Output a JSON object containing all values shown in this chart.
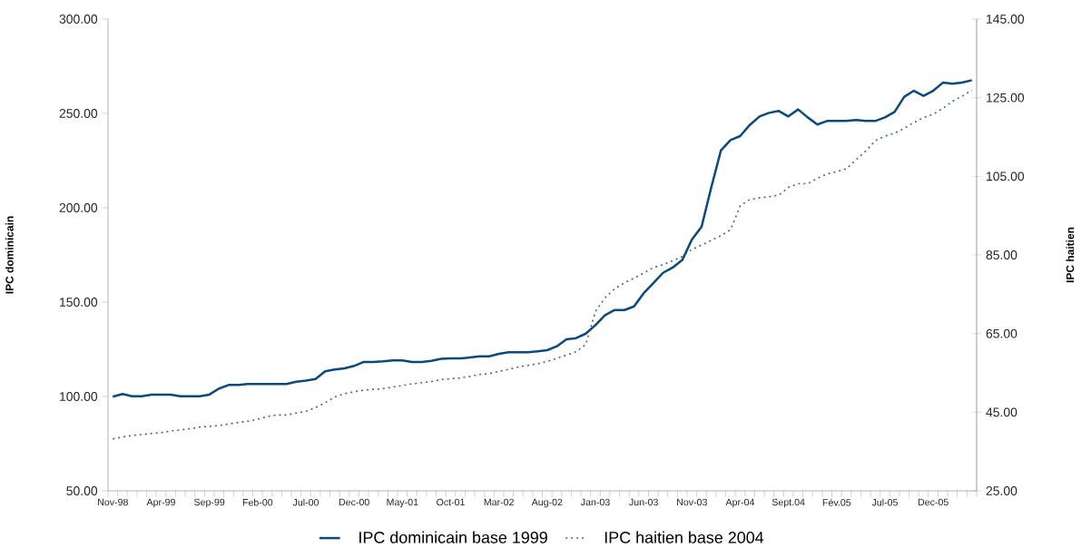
{
  "chart_data": {
    "type": "line",
    "categories": [
      "Nov-98",
      null,
      null,
      null,
      null,
      "Apr-99",
      null,
      null,
      null,
      null,
      "Sep-99",
      null,
      null,
      null,
      null,
      "Feb-00",
      null,
      null,
      null,
      null,
      "Jul-00",
      null,
      null,
      null,
      null,
      "Dec-00",
      null,
      null,
      null,
      null,
      "May-01",
      null,
      null,
      null,
      null,
      "Oct-01",
      null,
      null,
      null,
      null,
      "Mar-02",
      null,
      null,
      null,
      null,
      "Aug-02",
      null,
      null,
      null,
      null,
      "Jan-03",
      null,
      null,
      null,
      null,
      "Jun-03",
      null,
      null,
      null,
      null,
      "Nov-03",
      null,
      null,
      null,
      null,
      "Apr-04",
      null,
      null,
      null,
      null,
      "Sept.04",
      null,
      null,
      null,
      null,
      "Fév.05",
      null,
      null,
      null,
      null,
      "Jul-05",
      null,
      null,
      null,
      null,
      "Dec-05",
      null,
      null,
      null,
      null
    ],
    "series": [
      {
        "name": "IPC dominicain base 1999",
        "color": "#0b4a7a",
        "line_style": "solid",
        "values": [
          99.9,
          101.3,
          100.1,
          100.1,
          101.0,
          101.0,
          101.0,
          100.1,
          100.1,
          100.1,
          101.0,
          104.2,
          106.1,
          106.1,
          106.6,
          106.6,
          106.6,
          106.6,
          106.6,
          107.8,
          108.4,
          109.3,
          113.3,
          114.3,
          114.9,
          116.2,
          118.3,
          118.3,
          118.6,
          119.1,
          119.1,
          118.3,
          118.3,
          118.9,
          120.0,
          120.2,
          120.2,
          120.7,
          121.3,
          121.3,
          122.6,
          123.4,
          123.4,
          123.4,
          123.9,
          124.5,
          126.6,
          130.3,
          130.9,
          133.3,
          137.8,
          143.1,
          145.8,
          145.8,
          147.7,
          154.7,
          160.0,
          165.5,
          168.3,
          172.3,
          183.2,
          189.9,
          210.7,
          230.3,
          235.9,
          238.0,
          243.9,
          248.4,
          250.3,
          251.3,
          248.4,
          252.1,
          247.9,
          244.1,
          246.0,
          246.0,
          246.0,
          246.5,
          246.0,
          246.0,
          247.9,
          250.8,
          258.8,
          262.0,
          259.3,
          262.0,
          266.3,
          265.7,
          266.3,
          267.6
        ]
      },
      {
        "name": "IPC haitien base 2004",
        "color": "#3f6f5a",
        "line_style": "dotted",
        "axis": "y2",
        "values": [
          38.2,
          38.7,
          39.1,
          39.3,
          39.6,
          39.8,
          40.2,
          40.5,
          40.8,
          41.2,
          41.4,
          41.6,
          42.0,
          42.4,
          42.7,
          43.2,
          43.9,
          44.3,
          44.3,
          44.8,
          45.2,
          46.2,
          47.4,
          48.9,
          49.7,
          50.2,
          50.6,
          50.8,
          51.0,
          51.4,
          51.8,
          52.2,
          52.5,
          52.8,
          53.3,
          53.5,
          53.7,
          54.1,
          54.6,
          54.8,
          55.4,
          55.9,
          56.5,
          56.9,
          57.3,
          57.9,
          58.7,
          59.5,
          60.4,
          62.2,
          70.6,
          74.1,
          76.4,
          77.9,
          79.1,
          80.4,
          81.8,
          82.5,
          83.5,
          84.6,
          86.4,
          87.5,
          88.7,
          89.9,
          91.4,
          97.5,
          99.1,
          99.5,
          99.8,
          100.2,
          102.2,
          103.1,
          103.1,
          104.5,
          105.6,
          106.2,
          106.9,
          109.2,
          111.4,
          114.1,
          115.2,
          116.0,
          117.2,
          118.7,
          119.9,
          120.8,
          122.3,
          124.1,
          125.4,
          126.9
        ]
      }
    ],
    "ylabel": "IPC dominicain",
    "y2label": "IPC haitien",
    "ylim": [
      50,
      300
    ],
    "yticks": [
      {
        "value": 50,
        "label": "50.00"
      },
      {
        "value": 100,
        "label": "100.00"
      },
      {
        "value": 150,
        "label": "150.00"
      },
      {
        "value": 200,
        "label": "200.00"
      },
      {
        "value": 250,
        "label": "250.00"
      },
      {
        "value": 300,
        "label": "300.00"
      }
    ],
    "y2lim": [
      25,
      145
    ],
    "y2ticks": [
      {
        "value": 25,
        "label": "25.00"
      },
      {
        "value": 45,
        "label": "45.00"
      },
      {
        "value": 65,
        "label": "65.00"
      },
      {
        "value": 85,
        "label": "85.00"
      },
      {
        "value": 105,
        "label": "105.00"
      },
      {
        "value": 125,
        "label": "125.00"
      },
      {
        "value": 145,
        "label": "145.00"
      }
    ],
    "legend": "bottom"
  }
}
